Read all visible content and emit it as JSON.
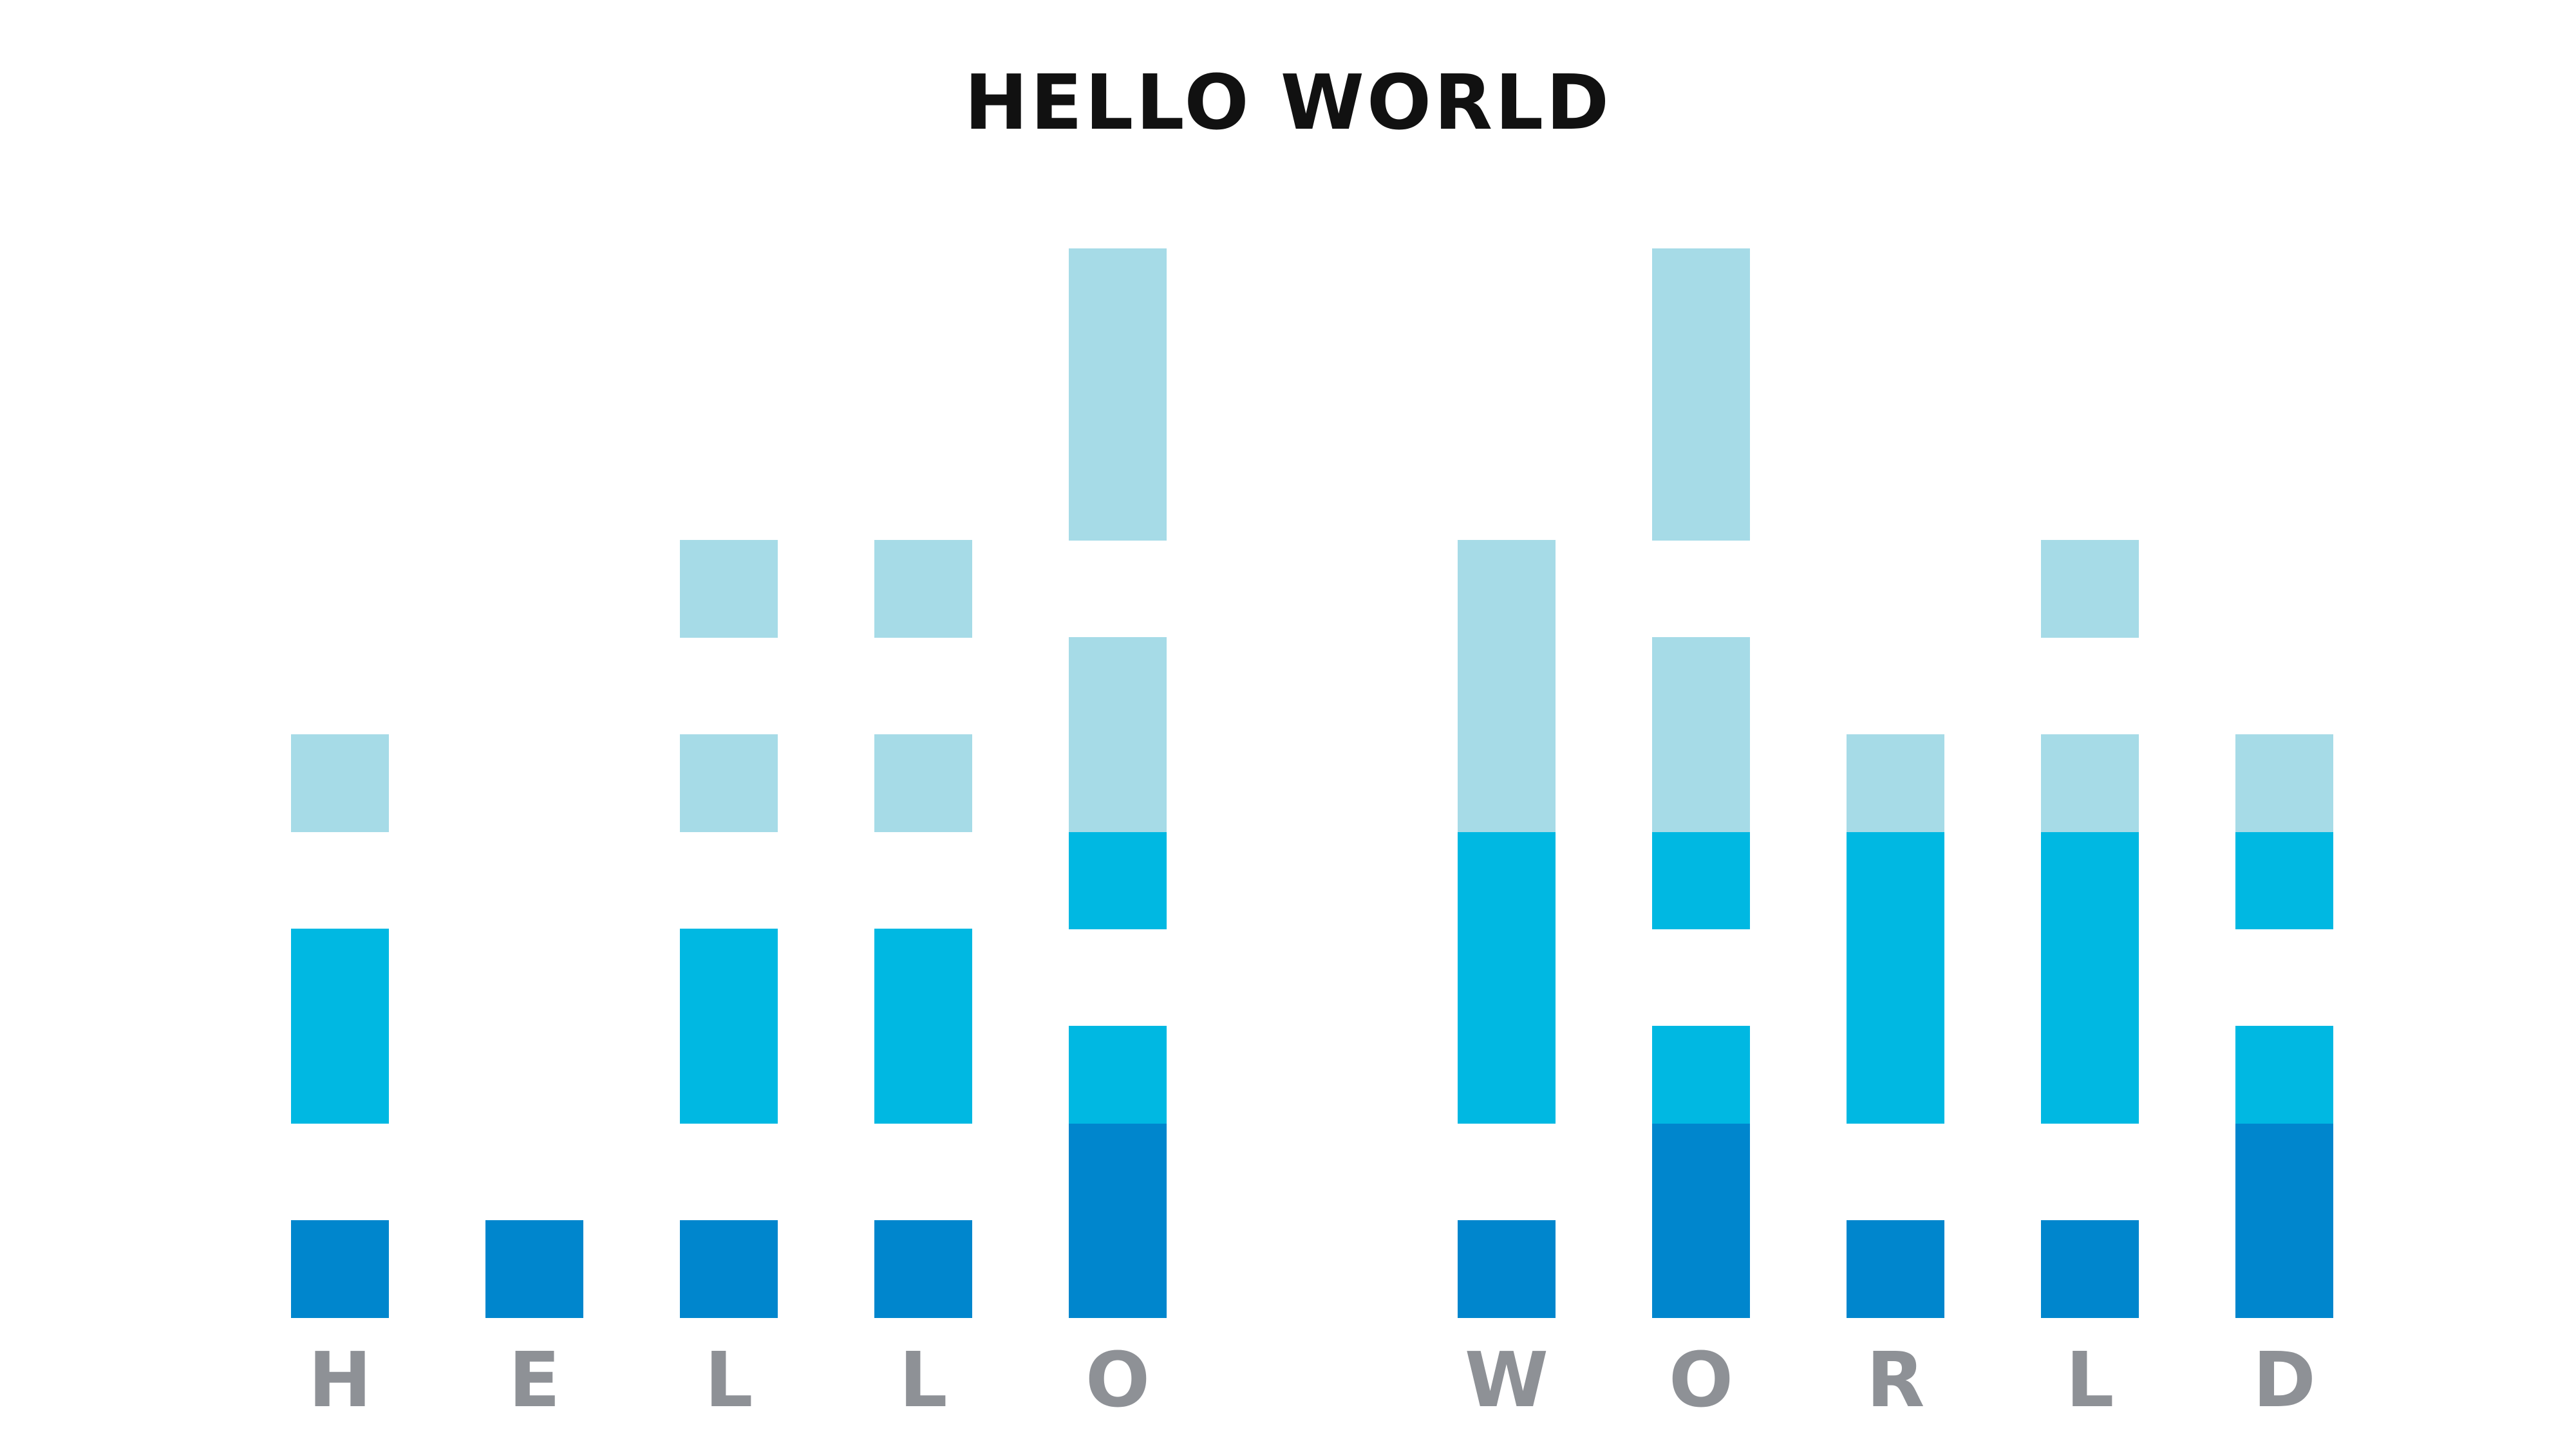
{
  "chart_data": {
    "type": "bar",
    "title": "HELLO WORLD",
    "categories": [
      "H",
      "E",
      "L",
      "L",
      "O",
      "",
      "W",
      "O",
      "R",
      "L",
      "D"
    ],
    "levels": 6,
    "grid": false,
    "legend": "none",
    "colors": {
      "dark": "#0086CD",
      "mid": "#00B8E2",
      "light": "#A6DBE7",
      "label": "#8E9196",
      "title": "#111111"
    },
    "columns": [
      {
        "label": "H",
        "cells": [
          1,
          0,
          2,
          2,
          0,
          3,
          0
        ]
      },
      {
        "label": "E",
        "cells": [
          1,
          0,
          0,
          0,
          0,
          0,
          0
        ]
      },
      {
        "label": "L",
        "cells": [
          1,
          0,
          2,
          2,
          0,
          3,
          0,
          3
        ]
      },
      {
        "label": "L",
        "cells": [
          1,
          0,
          2,
          2,
          0,
          3,
          0,
          3
        ]
      },
      {
        "label": "O",
        "cells": [
          1,
          1,
          2,
          0,
          2,
          3,
          3,
          0,
          3,
          3,
          3
        ]
      },
      {
        "label": "",
        "cells": []
      },
      {
        "label": "W",
        "cells": [
          1,
          0,
          2,
          2,
          2,
          3,
          3,
          3
        ]
      },
      {
        "label": "O",
        "cells": [
          1,
          1,
          2,
          0,
          2,
          3,
          3,
          0,
          3,
          3,
          3
        ]
      },
      {
        "label": "R",
        "cells": [
          1,
          0,
          2,
          2,
          2,
          3
        ]
      },
      {
        "label": "L",
        "cells": [
          1,
          0,
          2,
          2,
          2,
          3,
          0,
          3
        ]
      },
      {
        "label": "D",
        "cells": [
          1,
          1,
          2,
          0,
          2,
          3
        ]
      }
    ]
  }
}
